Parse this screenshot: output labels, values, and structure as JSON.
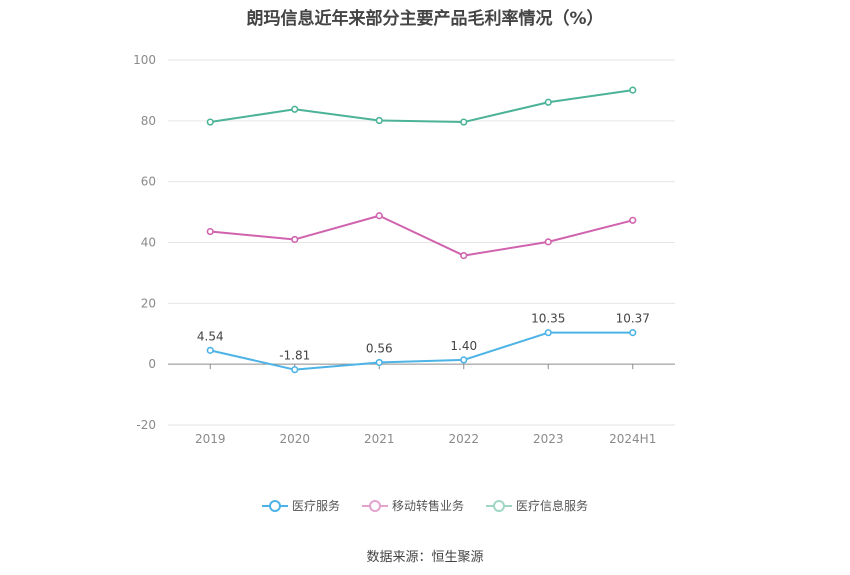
{
  "chart_data": {
    "type": "line",
    "title": "朗玛信息近年来部分主要产品毛利率情况（%）",
    "categories": [
      "2019",
      "2020",
      "2021",
      "2022",
      "2023",
      "2024H1"
    ],
    "ylim": [
      -20,
      100
    ],
    "yticks": [
      -20,
      0,
      20,
      40,
      60,
      80,
      100
    ],
    "series": [
      {
        "name": "医疗服务",
        "color": "#4db3e6",
        "values": [
          4.54,
          -1.81,
          0.56,
          1.4,
          10.35,
          10.37
        ],
        "labels": [
          "4.54",
          "-1.81",
          "0.56",
          "1.40",
          "10.35",
          "10.37"
        ],
        "show_labels": true
      },
      {
        "name": "移动转售业务",
        "color": "#d063ae",
        "values": [
          43.6,
          41.0,
          48.8,
          35.7,
          40.2,
          47.3
        ],
        "show_labels": false
      },
      {
        "name": "医疗信息服务",
        "color": "#4cb398",
        "values": [
          79.6,
          83.8,
          80.1,
          79.6,
          86.1,
          90.1
        ],
        "show_labels": false
      }
    ]
  },
  "source": "数据来源：恒生聚源"
}
